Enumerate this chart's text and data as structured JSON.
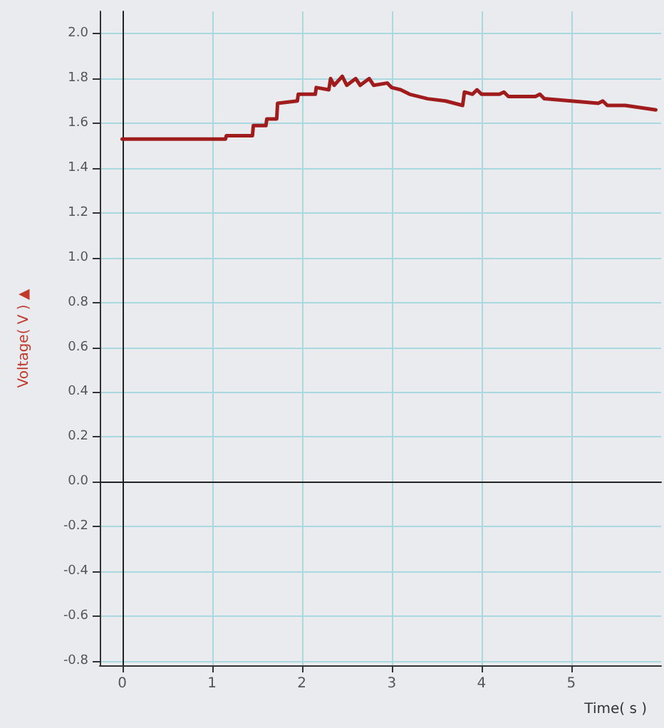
{
  "chart_data": {
    "type": "line",
    "xlabel": "Time( s )",
    "ylabel": "Voltage( V ) ▲",
    "xlim": [
      -0.25,
      6
    ],
    "xticks": [
      0,
      1,
      2,
      3,
      4,
      5
    ],
    "ylim": [
      -0.82,
      2.1
    ],
    "yticks": [
      {
        "value": -0.8,
        "label": "-0.8"
      },
      {
        "value": -0.6,
        "label": "-0.6"
      },
      {
        "value": -0.4,
        "label": "-0.4"
      },
      {
        "value": -0.2,
        "label": "-0.2"
      },
      {
        "value": 0,
        "label": "0.0"
      },
      {
        "value": 0.2,
        "label": "0.2"
      },
      {
        "value": 0.4,
        "label": "0.4"
      },
      {
        "value": 0.6,
        "label": "0.6"
      },
      {
        "value": 0.8,
        "label": "0.8"
      },
      {
        "value": 1,
        "label": "1.0"
      },
      {
        "value": 1.2,
        "label": "1.2"
      },
      {
        "value": 1.4,
        "label": "1.4"
      },
      {
        "value": 1.6,
        "label": "1.6"
      },
      {
        "value": 1.8,
        "label": "1.8"
      },
      {
        "value": 2,
        "label": "2.0"
      }
    ],
    "grid": true,
    "marker": "none",
    "line_style": "solid",
    "series": [
      {
        "color": "#a01c1c",
        "x": [
          0,
          1.15,
          1.16,
          1.45,
          1.46,
          1.6,
          1.61,
          1.72,
          1.73,
          1.95,
          1.96,
          2.15,
          2.16,
          2.3,
          2.32,
          2.36,
          2.45,
          2.5,
          2.6,
          2.65,
          2.75,
          2.8,
          2.95,
          3.0,
          3.1,
          3.2,
          3.4,
          3.6,
          3.79,
          3.81,
          3.9,
          3.95,
          4.0,
          4.2,
          4.25,
          4.3,
          4.6,
          4.65,
          4.7,
          5.0,
          5.3,
          5.35,
          5.4,
          5.6,
          5.94
        ],
        "values": [
          1.53,
          1.53,
          1.545,
          1.545,
          1.59,
          1.59,
          1.62,
          1.62,
          1.69,
          1.7,
          1.73,
          1.73,
          1.76,
          1.75,
          1.8,
          1.77,
          1.81,
          1.77,
          1.8,
          1.77,
          1.8,
          1.77,
          1.78,
          1.76,
          1.75,
          1.73,
          1.71,
          1.7,
          1.68,
          1.74,
          1.73,
          1.75,
          1.73,
          1.73,
          1.74,
          1.72,
          1.72,
          1.73,
          1.71,
          1.7,
          1.69,
          1.7,
          1.68,
          1.68,
          1.66
        ]
      }
    ]
  }
}
